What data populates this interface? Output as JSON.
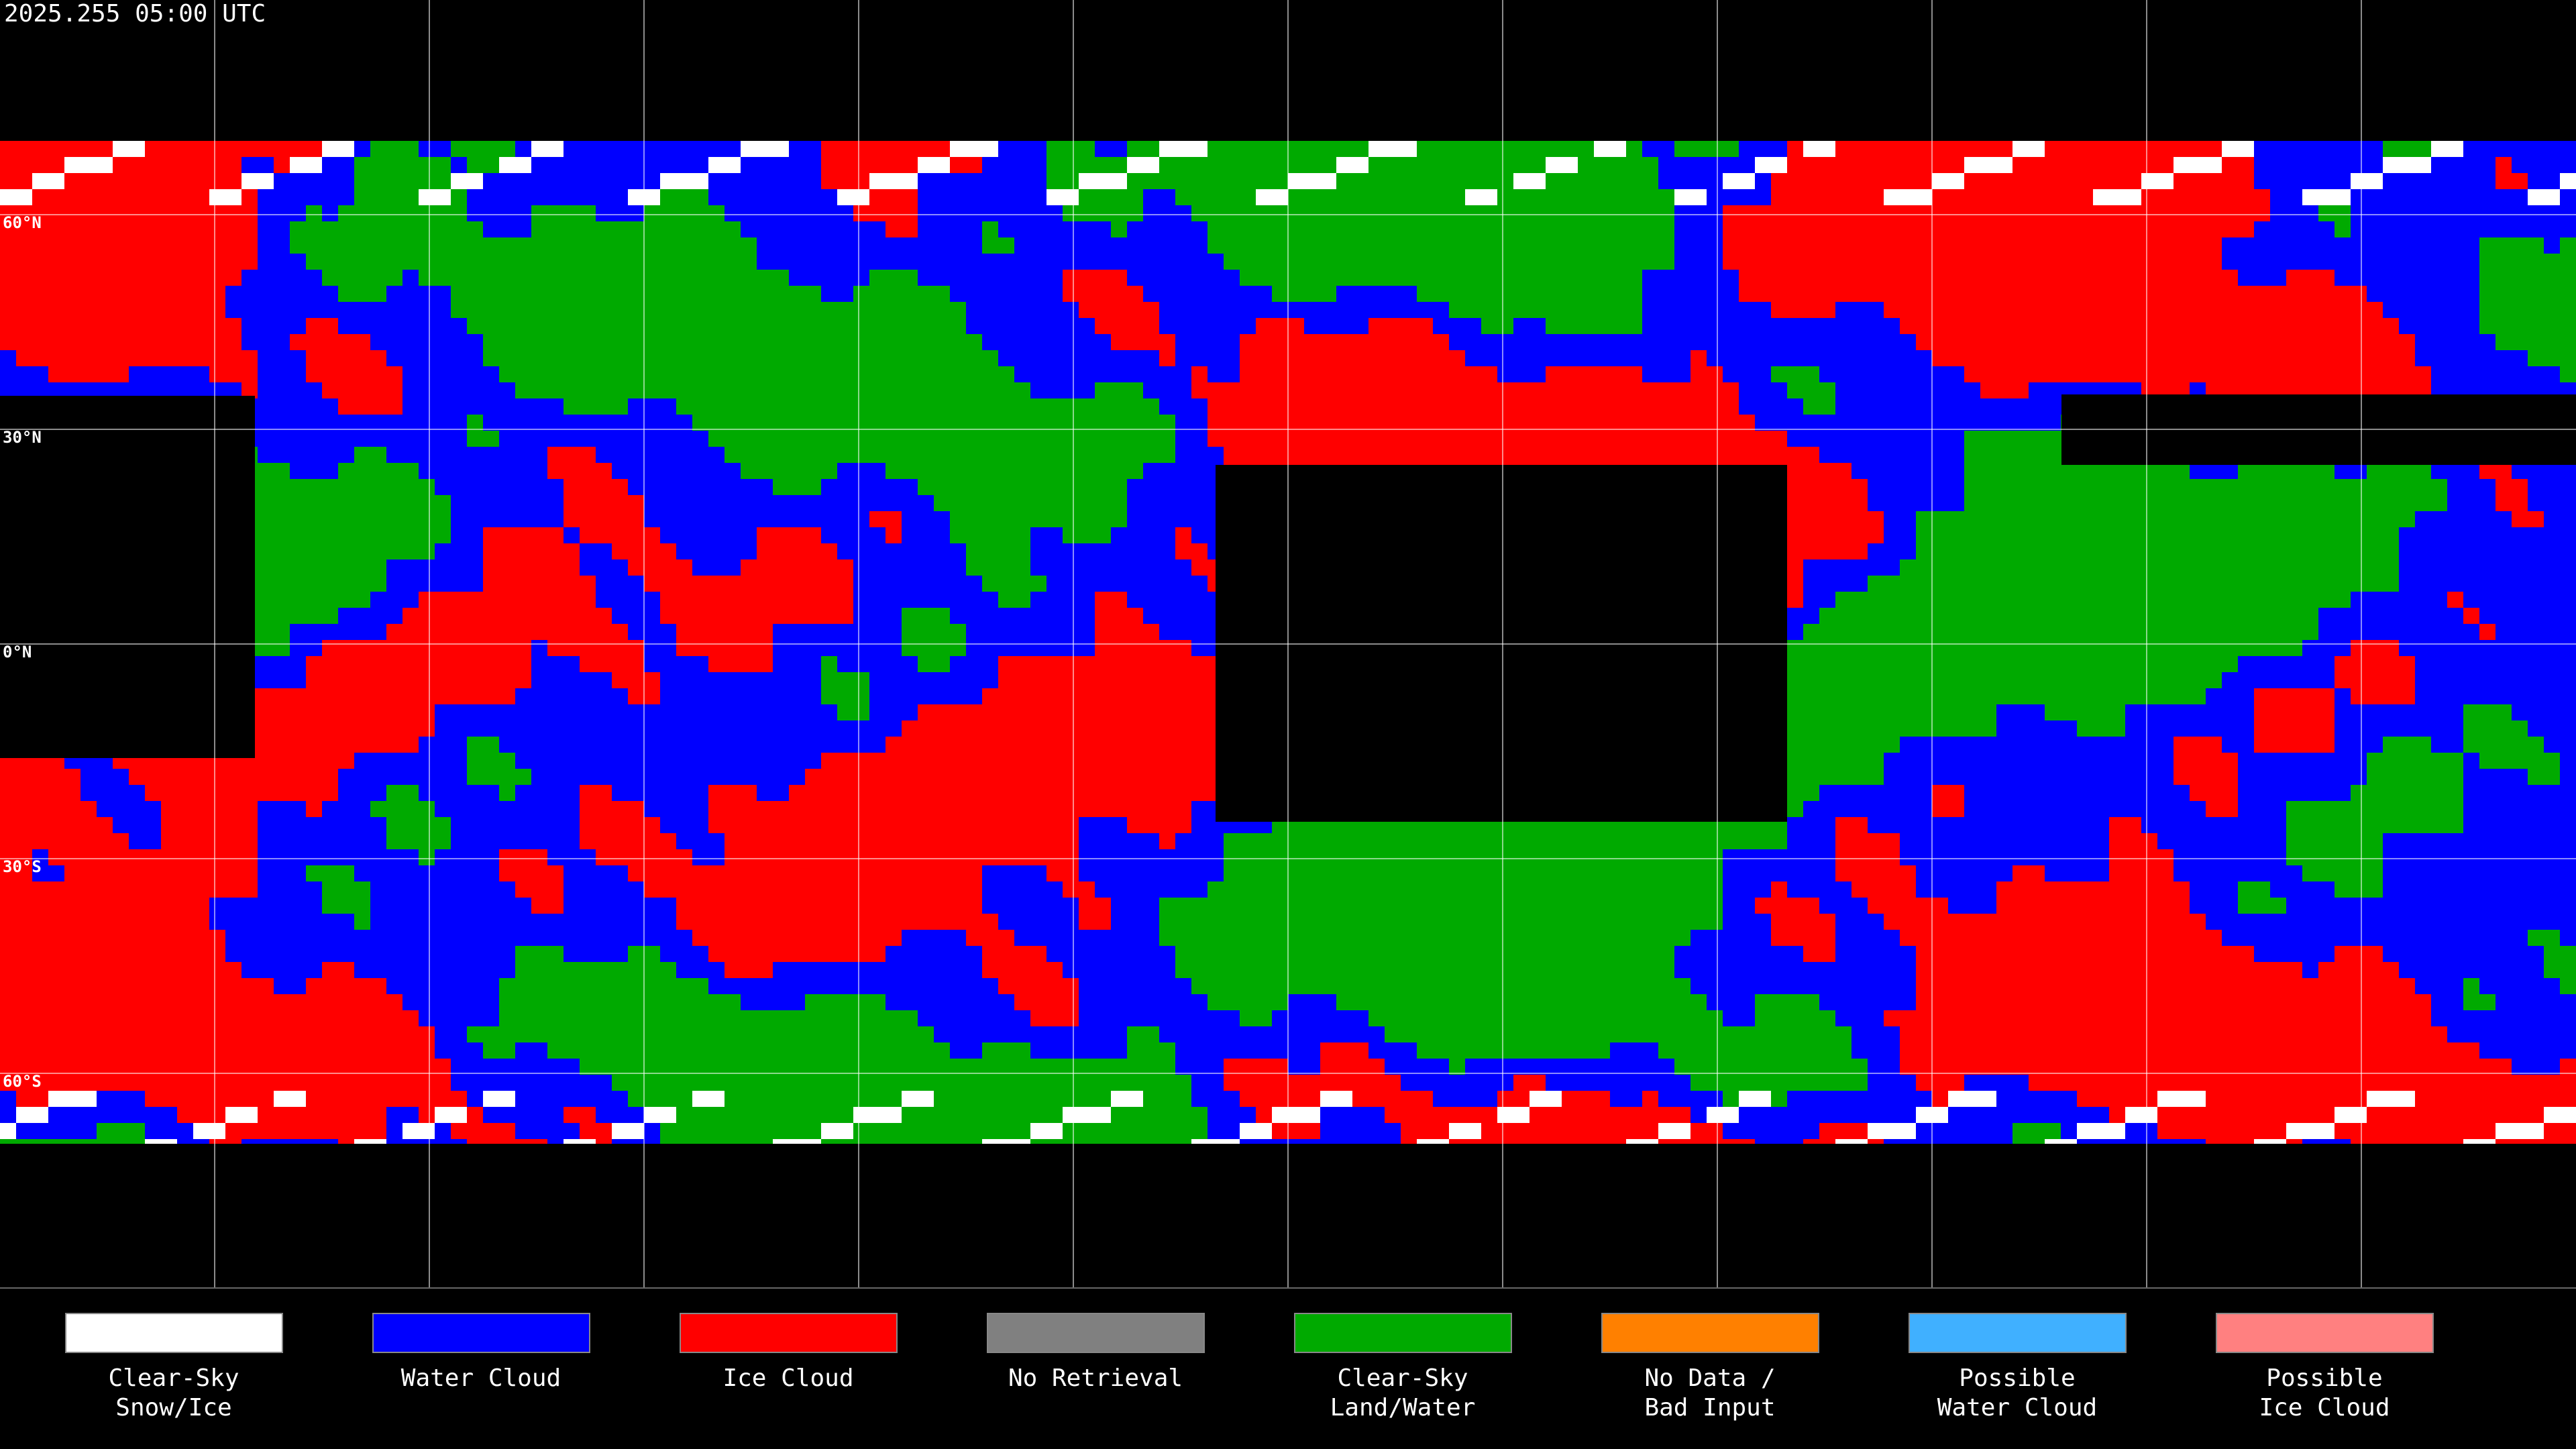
{
  "header": {
    "title": "2025.255 05:00 UTC"
  },
  "map": {
    "lat_labels": [
      "60°N",
      "30°N",
      "0°N",
      "30°S",
      "60°S"
    ]
  },
  "legend": {
    "items": [
      {
        "label": [
          "Clear-Sky",
          "Snow/Ice"
        ],
        "color": "#ffffff"
      },
      {
        "label": [
          "Water Cloud"
        ],
        "color": "#0000ff"
      },
      {
        "label": [
          "Ice Cloud"
        ],
        "color": "#ff0000"
      },
      {
        "label": [
          "No Retrieval"
        ],
        "color": "#808080"
      },
      {
        "label": [
          "Clear-Sky",
          "Land/Water"
        ],
        "color": "#00aa00"
      },
      {
        "label": [
          "No Data /",
          "Bad Input"
        ],
        "color": "#ff8000"
      },
      {
        "label": [
          "Possible",
          "Water Cloud"
        ],
        "color": "#40b0ff"
      },
      {
        "label": [
          "Possible",
          "Ice Cloud"
        ],
        "color": "#ff8080"
      }
    ]
  }
}
